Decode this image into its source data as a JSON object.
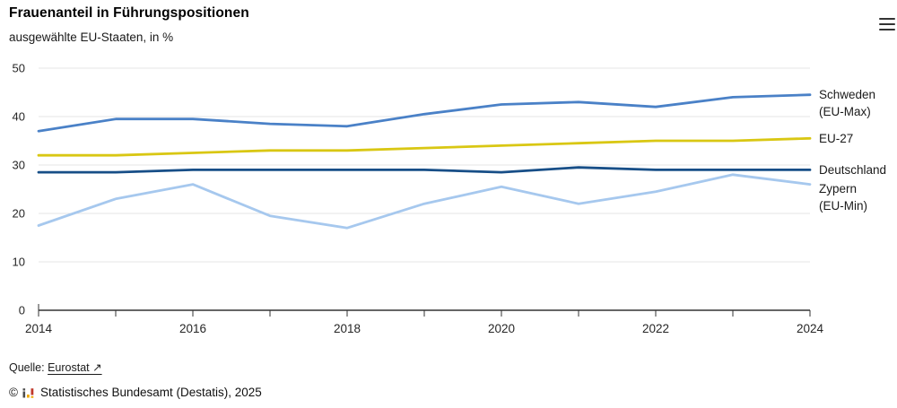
{
  "header": {
    "title": "Frauenanteil in Führungspositionen",
    "subtitle": "ausgewählte EU-Staaten, in %"
  },
  "menu_icon": "hamburger-menu",
  "chart_data": {
    "type": "line",
    "title": "Frauenanteil in Führungspositionen",
    "subtitle": "ausgewählte EU-Staaten, in %",
    "x": [
      2014,
      2015,
      2016,
      2017,
      2018,
      2019,
      2020,
      2021,
      2022,
      2023,
      2024
    ],
    "x_tick_labels": [
      "2014",
      "2016",
      "2018",
      "2020",
      "2022",
      "2024"
    ],
    "ylim": [
      0,
      50
    ],
    "yticks": [
      0,
      10,
      20,
      30,
      40,
      50
    ],
    "grid": true,
    "legend_position": "right-of-line-ends",
    "axis_color": "#333333",
    "grid_color": "#e6e6e6",
    "series": [
      {
        "name": "Schweden (EU-Max)",
        "label_lines": [
          "Schweden",
          "(EU-Max)"
        ],
        "color": "#4a81c7",
        "values": [
          37,
          39.5,
          39.5,
          38.5,
          38,
          40.5,
          42.5,
          43,
          42,
          44,
          44.5
        ]
      },
      {
        "name": "EU-27",
        "label_lines": [
          "EU-27"
        ],
        "color": "#d9c713",
        "values": [
          32,
          32,
          32.5,
          33,
          33,
          33.5,
          34,
          34.5,
          35,
          35,
          35.5
        ]
      },
      {
        "name": "Deutschland",
        "label_lines": [
          "Deutschland"
        ],
        "color": "#174e87",
        "values": [
          28.5,
          28.5,
          29,
          29,
          29,
          29,
          28.5,
          29.5,
          29,
          29,
          29
        ]
      },
      {
        "name": "Zypern (EU-Min)",
        "label_lines": [
          "Zypern",
          "(EU-Min)"
        ],
        "color": "#a6c8ee",
        "values": [
          17.5,
          23,
          26,
          19.5,
          17,
          22,
          25.5,
          22,
          24.5,
          28,
          26
        ],
        "label_offset": 5
      }
    ]
  },
  "footer": {
    "source_label": "Quelle:",
    "source_link": "Eurostat ↗",
    "copyright_symbol": "©",
    "copyright_text": "Statistisches Bundesamt (Destatis), 2025"
  }
}
